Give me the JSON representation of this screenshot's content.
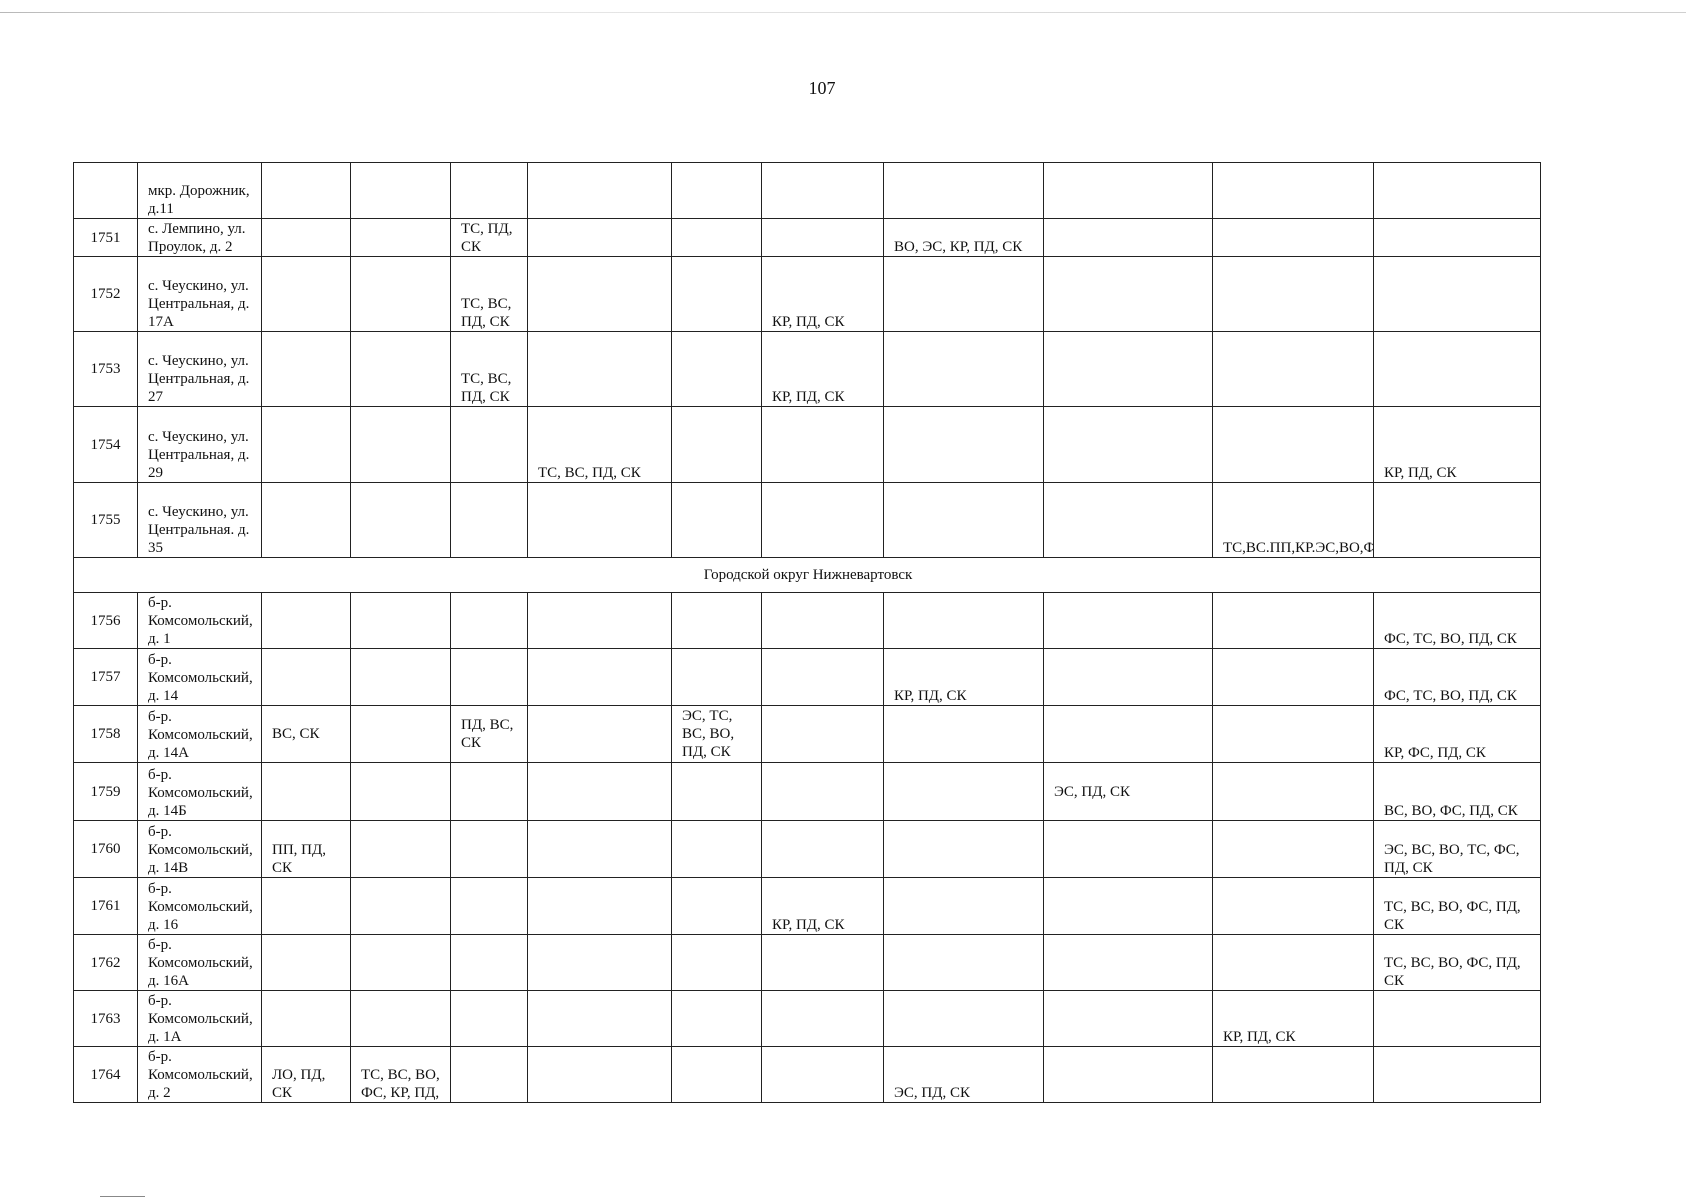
{
  "page_number": "107",
  "table": {
    "rows_before_section": [
      {
        "num": "",
        "address": "мкр. Дорожник, д.11",
        "cells": [
          "",
          "",
          "",
          "",
          "",
          "",
          "",
          "",
          "",
          ""
        ]
      },
      {
        "num": "1751",
        "address": "с. Лемпино, ул. Проулок, д. 2",
        "cells": [
          "",
          "",
          "ТС, ПД, СК",
          "",
          "",
          "",
          "ВО, ЭС, КР, ПД, СК",
          "",
          "",
          ""
        ]
      },
      {
        "num": "1752",
        "address": "с. Чеускино, ул. Центральная, д. 17А",
        "cells": [
          "",
          "",
          "ТС, ВС, ПД, СК",
          "",
          "",
          "КР, ПД, СК",
          "",
          "",
          "",
          ""
        ]
      },
      {
        "num": "1753",
        "address": "с. Чеускино, ул. Центральная, д. 27",
        "cells": [
          "",
          "",
          "ТС, ВС, ПД, СК",
          "",
          "",
          "КР, ПД, СК",
          "",
          "",
          "",
          ""
        ]
      },
      {
        "num": "1754",
        "address": "с. Чеускино, ул. Центральная, д. 29",
        "cells": [
          "",
          "",
          "",
          "ТС, ВС, ПД, СК",
          "",
          "",
          "",
          "",
          "",
          "КР, ПД, СК"
        ]
      },
      {
        "num": "1755",
        "address": "с. Чеускино, ул. Центральная. д. 35",
        "cells": [
          "",
          "",
          "",
          "",
          "",
          "",
          "",
          "",
          "ТС,ВС.ПП,КР.ЭС,ВО,ФС,ФД,ПД,СК",
          ""
        ]
      }
    ],
    "section_title": "Городской округ Нижневартовск",
    "rows_after_section": [
      {
        "num": "1756",
        "address": "б-р. Комсомольский, д. 1",
        "cells": [
          "",
          "",
          "",
          "",
          "",
          "",
          "",
          "",
          "",
          "ФС, ТС, ВО, ПД, СК"
        ]
      },
      {
        "num": "1757",
        "address": "б-р. Комсомольский, д. 14",
        "cells": [
          "",
          "",
          "",
          "",
          "",
          "",
          "КР, ПД, СК",
          "",
          "",
          "ФС, ТС, ВО, ПД, СК"
        ]
      },
      {
        "num": "1758",
        "address": "б-р. Комсомольский, д. 14А",
        "cells": [
          "ВС, СК",
          "",
          "ПД, ВС, СК",
          "",
          "ЭС, ТС, ВС, ВО, ПД, СК",
          "",
          "",
          "",
          "",
          "КР, ФС, ПД, СК"
        ]
      },
      {
        "num": "1759",
        "address": "б-р. Комсомольский, д. 14Б",
        "cells": [
          "",
          "",
          "",
          "",
          "",
          "",
          "",
          "ЭС, ПД, СК",
          "",
          "ВС, ВО, ФС, ПД, СК"
        ]
      },
      {
        "num": "1760",
        "address": "б-р. Комсомольский, д. 14В",
        "cells": [
          "ПП, ПД, СК",
          "",
          "",
          "",
          "",
          "",
          "",
          "",
          "",
          "ЭС, ВС, ВО, ТС, ФС, ПД, СК"
        ]
      },
      {
        "num": "1761",
        "address": "б-р. Комсомольский, д. 16",
        "cells": [
          "",
          "",
          "",
          "",
          "",
          "КР, ПД, СК",
          "",
          "",
          "",
          "ТС, ВС, ВО, ФС, ПД, СК"
        ]
      },
      {
        "num": "1762",
        "address": "б-р. Комсомольский, д. 16А",
        "cells": [
          "",
          "",
          "",
          "",
          "",
          "",
          "",
          "",
          "",
          "ТС, ВС, ВО, ФС, ПД, СК"
        ]
      },
      {
        "num": "1763",
        "address": "б-р. Комсомольский, д. 1А",
        "cells": [
          "",
          "",
          "",
          "",
          "",
          "",
          "",
          "",
          "КР, ПД, СК",
          ""
        ]
      },
      {
        "num": "1764",
        "address": "б-р. Комсомольский, д. 2",
        "cells": [
          "ЛО, ПД, СК",
          "ТС, ВС, ВО, ФС, КР, ПД,",
          "",
          "",
          "",
          "",
          "ЭС, ПД, СК",
          "",
          "",
          ""
        ]
      }
    ]
  }
}
